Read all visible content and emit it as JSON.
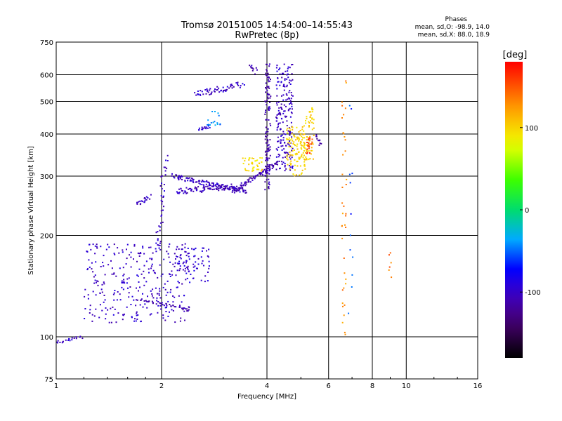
{
  "chart_data": {
    "type": "scatter",
    "title": "Tromsø 20151005 14:54:00–14:55:43",
    "subtitle": "RwPretec (8p)",
    "xlabel": "Frequency [MHz]",
    "ylabel": "Stationary phase Virtual Height [km]",
    "xscale": "log",
    "yscale": "log",
    "xlim": [
      1,
      16
    ],
    "ylim": [
      75,
      750
    ],
    "x_ticks": [
      1,
      2,
      4,
      6,
      8,
      10,
      16
    ],
    "y_ticks": [
      75,
      100,
      200,
      300,
      400,
      500,
      600,
      750
    ],
    "grid": true,
    "legend_placement": "top-right",
    "stats_box": {
      "title": "Phases",
      "line1": "mean, sd,O: -98.9, 14.0",
      "line2": "mean, sd,X:  88.0, 18.9"
    },
    "colorbar": {
      "label": "[deg]",
      "ticks": [
        100,
        0,
        -100
      ],
      "range": [
        -180,
        180
      ]
    },
    "point_groups": [
      {
        "type": "line",
        "x0": 1.0,
        "x1": 1.18,
        "y0": 96,
        "y1": 100,
        "phase": -100,
        "n": 20,
        "jitter": 0.01
      },
      {
        "type": "cloud",
        "x": [
          1.2,
          2.4
        ],
        "y": [
          110,
          190
        ],
        "phase": -100,
        "n": 300
      },
      {
        "type": "line",
        "x0": 1.7,
        "x1": 2.4,
        "y0": 130,
        "y1": 120,
        "phase": -110,
        "n": 40,
        "jitter": 0.01
      },
      {
        "type": "line",
        "x0": 1.7,
        "x1": 1.85,
        "y0": 250,
        "y1": 260,
        "phase": -105,
        "n": 20,
        "jitter": 0.02
      },
      {
        "type": "line",
        "x0": 1.95,
        "x1": 2.05,
        "y0": 180,
        "y1": 340,
        "phase": -100,
        "n": 40,
        "jitter": 0.02
      },
      {
        "type": "cloud",
        "x": [
          2.2,
          2.75
        ],
        "y": [
          145,
          185
        ],
        "phase": -95,
        "n": 70
      },
      {
        "type": "line",
        "x0": 2.15,
        "x1": 3.5,
        "y0": 300,
        "y1": 270,
        "phase": -100,
        "n": 120,
        "jitter": 0.015
      },
      {
        "type": "line",
        "x0": 2.2,
        "x1": 3.2,
        "y0": 270,
        "y1": 280,
        "phase": -105,
        "n": 80,
        "jitter": 0.02
      },
      {
        "type": "line",
        "x0": 3.2,
        "x1": 4.3,
        "y0": 270,
        "y1": 330,
        "phase": -110,
        "n": 90,
        "jitter": 0.015
      },
      {
        "type": "line",
        "x0": 2.5,
        "x1": 3.4,
        "y0": 525,
        "y1": 560,
        "phase": -100,
        "n": 60,
        "jitter": 0.02
      },
      {
        "type": "line",
        "x0": 3.6,
        "x1": 3.75,
        "y0": 640,
        "y1": 610,
        "phase": -110,
        "n": 10,
        "jitter": 0.02
      },
      {
        "type": "line",
        "x0": 2.55,
        "x1": 2.75,
        "y0": 415,
        "y1": 420,
        "phase": -100,
        "n": 14,
        "jitter": 0.01
      },
      {
        "type": "cloud",
        "x": [
          2.7,
          2.95
        ],
        "y": [
          420,
          470
        ],
        "phase": -45,
        "n": 16
      },
      {
        "type": "cloud",
        "x": [
          3.4,
          3.9
        ],
        "y": [
          310,
          340
        ],
        "phase": 95,
        "n": 40
      },
      {
        "type": "cloud",
        "x": [
          3.95,
          4.1
        ],
        "y": [
          270,
          650
        ],
        "phase": -110,
        "n": 120
      },
      {
        "type": "cloud",
        "x": [
          4.25,
          4.75
        ],
        "y": [
          310,
          650
        ],
        "phase": -100,
        "n": 200
      },
      {
        "type": "cloud",
        "x": [
          4.55,
          5.15
        ],
        "y": [
          300,
          420
        ],
        "phase": 100,
        "n": 120
      },
      {
        "type": "cloud",
        "x": [
          5.1,
          5.45
        ],
        "y": [
          330,
          480
        ],
        "phase": 100,
        "n": 60
      },
      {
        "type": "cloud",
        "x": [
          5.2,
          5.4
        ],
        "y": [
          350,
          390
        ],
        "phase": 160,
        "n": 20
      },
      {
        "type": "line",
        "x0": 5.55,
        "x1": 5.7,
        "y0": 400,
        "y1": 370,
        "phase": -110,
        "n": 10,
        "jitter": 0.01
      },
      {
        "type": "cloud",
        "x": [
          6.55,
          6.75
        ],
        "y": [
          100,
          600
        ],
        "phase": 130,
        "n": 40
      },
      {
        "type": "cloud",
        "x": [
          6.75,
          7.05
        ],
        "y": [
          100,
          500
        ],
        "phase": -60,
        "n": 12
      },
      {
        "type": "cloud",
        "x": [
          8.9,
          9.1
        ],
        "y": [
          120,
          230
        ],
        "phase": 140,
        "n": 6
      }
    ]
  }
}
